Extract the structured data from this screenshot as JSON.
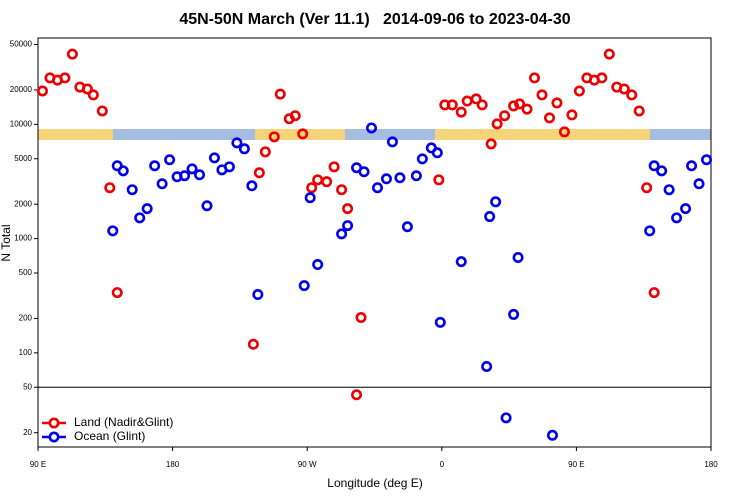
{
  "chart_data": {
    "type": "scatter",
    "title": "45N-50N March (Ver 11.1)   2014-09-06 to 2023-04-30",
    "x_label": "Longitude (deg E)",
    "y_label": "N Total",
    "log_y": true,
    "xlim": [
      90,
      540
    ],
    "ylim": [
      15,
      57000
    ],
    "xticks": [
      {
        "value": 90,
        "label": "90 E"
      },
      180,
      {
        "value": 270,
        "label": "90 W"
      },
      {
        "value": 360,
        "label": "0"
      },
      {
        "value": 450,
        "label": "90 E"
      },
      {
        "value": 540,
        "label": "180"
      }
    ],
    "yticks": [
      20,
      50,
      100,
      200,
      500,
      1000,
      2000,
      5000,
      10000,
      20000,
      50000
    ],
    "reference_line": 50,
    "legend": "lower left",
    "series": [
      {
        "name": "Land (Nadir&Glint)",
        "color": "#ee0000",
        "x": [
          93,
          98,
          103,
          108,
          113,
          118,
          123,
          127,
          133,
          138,
          143,
          234,
          238,
          242,
          248,
          252,
          258,
          262,
          267,
          273,
          277,
          283,
          288,
          293,
          297,
          303,
          306,
          358,
          362,
          367,
          373,
          377,
          383,
          387,
          393,
          397,
          402,
          408,
          412,
          417,
          422,
          427,
          432,
          437,
          442,
          447,
          452,
          457,
          462,
          467,
          472,
          477,
          482,
          487,
          492,
          497,
          502
        ],
        "values": [
          19600,
          25500,
          24400,
          25500,
          41200,
          21200,
          20400,
          18100,
          13100,
          2790,
          337,
          119,
          3770,
          5750,
          7780,
          18400,
          11200,
          11900,
          8250,
          2790,
          3270,
          3150,
          4250,
          2680,
          1830,
          43,
          204,
          3270,
          14800,
          14800,
          12800,
          16000,
          16700,
          14800,
          6740,
          10100,
          11900,
          14500,
          15100,
          13600,
          25500,
          18100,
          11400,
          15400,
          8600,
          12100,
          19600,
          25500,
          24400,
          25500,
          41200,
          21200,
          20400,
          18100,
          13100,
          2790,
          337
        ]
      },
      {
        "name": "Ocean (Glint)",
        "color": "#0000ee",
        "x": [
          140,
          143,
          147,
          153,
          158,
          163,
          168,
          173,
          178,
          183,
          188,
          193,
          198,
          203,
          208,
          213,
          218,
          223,
          228,
          233,
          237,
          268,
          272,
          277,
          293,
          297,
          303,
          308,
          313,
          317,
          323,
          327,
          332,
          337,
          343,
          347,
          353,
          357,
          359,
          373,
          390,
          392,
          396,
          403,
          408,
          411,
          434,
          499,
          502,
          507,
          512,
          517,
          523,
          527,
          532,
          537
        ],
        "values": [
          1170,
          4340,
          3920,
          2680,
          1520,
          1830,
          4340,
          3020,
          4900,
          3480,
          3550,
          4080,
          3620,
          1940,
          5090,
          4000,
          4250,
          6890,
          6110,
          2900,
          324,
          388,
          2280,
          593,
          1100,
          1300,
          4170,
          3850,
          9300,
          2790,
          3340,
          7030,
          3410,
          1270,
          3550,
          4990,
          6220,
          5640,
          185,
          629,
          76,
          1560,
          2100,
          27,
          217,
          683,
          19,
          1170,
          4340,
          3920,
          2680,
          1520,
          1830,
          4340,
          3020,
          4900
        ]
      }
    ]
  }
}
